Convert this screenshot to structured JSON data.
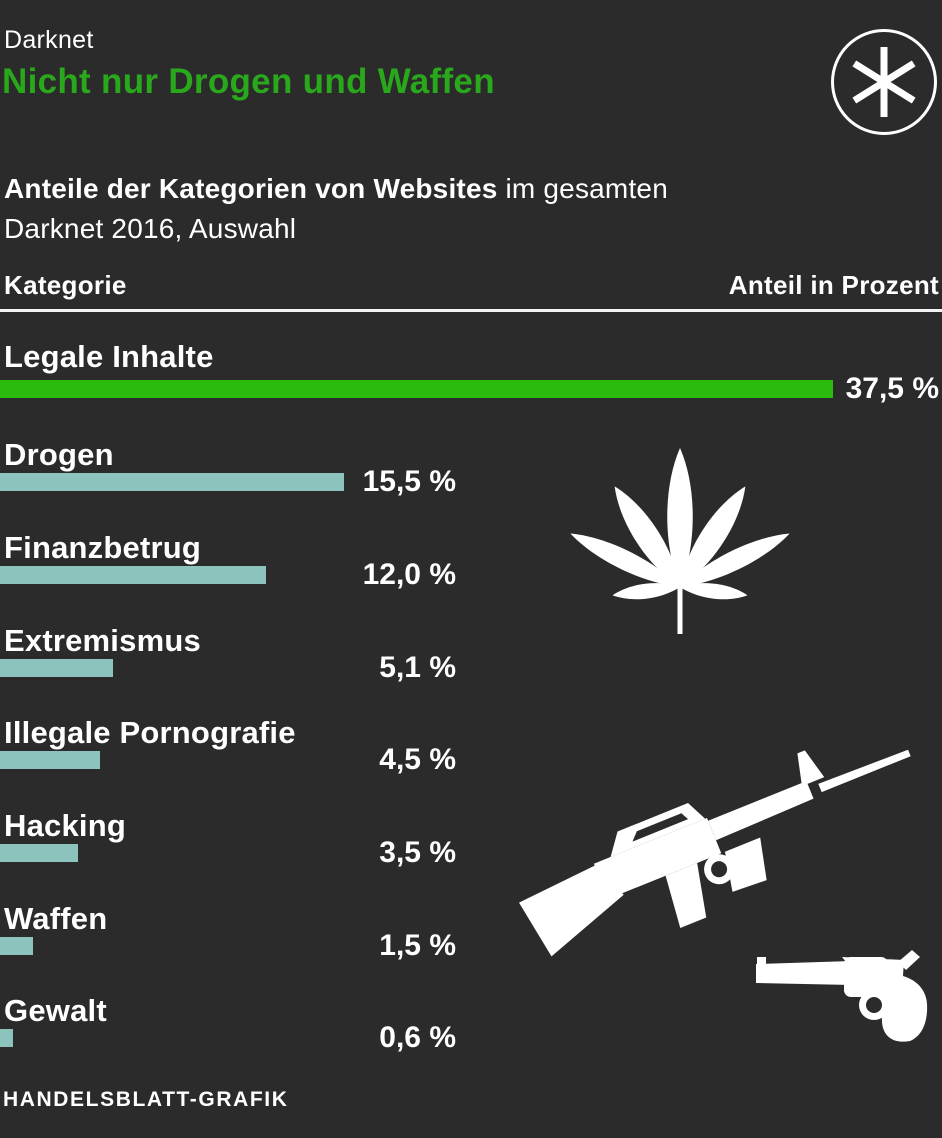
{
  "header": {
    "kicker": "Darknet",
    "title": "Nicht nur Drogen und Waffen"
  },
  "logo": {
    "icon": "asterisk-icon"
  },
  "subtitle": {
    "line1_bold": "Anteile der Kategorien von Websites",
    "line1_rest": " im gesamten",
    "line2": "Darknet 2016, Auswahl"
  },
  "table_header": {
    "category": "Kategorie",
    "value": "Anteil in Prozent"
  },
  "footer": {
    "credit": "HANDELSBLATT-GRAFIK"
  },
  "colors": {
    "background": "#2b2b2b",
    "headline_green": "#2aa81c",
    "bar_green": "#2abb0e",
    "bar_teal": "#8dc3bd",
    "text": "#ffffff",
    "divider": "#f4f4f4",
    "icon_white": "#ffffff"
  },
  "icons": {
    "publisher": "asterisk-icon",
    "drugs": "cannabis-leaf-icon",
    "weapons": [
      "rifle-icon",
      "revolver-icon"
    ]
  },
  "chart_data": {
    "type": "bar",
    "orientation": "horizontal",
    "title": "Nicht nur Drogen und Waffen",
    "subtitle": "Anteile der Kategorien von Websites im gesamten Darknet 2016, Auswahl",
    "unit": "percent",
    "xlim": [
      0,
      37.5
    ],
    "grid": false,
    "legend": false,
    "highlight_index": 0,
    "categories": [
      "Legale Inhalte",
      "Drogen",
      "Finanzbetrug",
      "Extremismus",
      "Illegale Pornografie",
      "Hacking",
      "Waffen",
      "Gewalt"
    ],
    "values": [
      37.5,
      15.5,
      12.0,
      5.1,
      4.5,
      3.5,
      1.5,
      0.6
    ],
    "value_labels": [
      "37,5 %",
      "15,5 %",
      "12,0 %",
      "5,1 %",
      "4,5 %",
      "3,5 %",
      "1,5 %",
      "0,6 %"
    ],
    "rows": [
      {
        "label": "Legale Inhalte",
        "value": 37.5,
        "value_label": "37,5 %",
        "color": "#2abb0e",
        "highlight": true
      },
      {
        "label": "Drogen",
        "value": 15.5,
        "value_label": "15,5 %",
        "color": "#8dc3bd",
        "highlight": false
      },
      {
        "label": "Finanzbetrug",
        "value": 12.0,
        "value_label": "12,0 %",
        "color": "#8dc3bd",
        "highlight": false
      },
      {
        "label": "Extremismus",
        "value": 5.1,
        "value_label": "5,1 %",
        "color": "#8dc3bd",
        "highlight": false
      },
      {
        "label": "Illegale Pornografie",
        "value": 4.5,
        "value_label": "4,5 %",
        "color": "#8dc3bd",
        "highlight": false
      },
      {
        "label": "Hacking",
        "value": 3.5,
        "value_label": "3,5 %",
        "color": "#8dc3bd",
        "highlight": false
      },
      {
        "label": "Waffen",
        "value": 1.5,
        "value_label": "1,5 %",
        "color": "#8dc3bd",
        "highlight": false
      },
      {
        "label": "Gewalt",
        "value": 0.6,
        "value_label": "0,6 %",
        "color": "#8dc3bd",
        "highlight": false
      }
    ]
  }
}
